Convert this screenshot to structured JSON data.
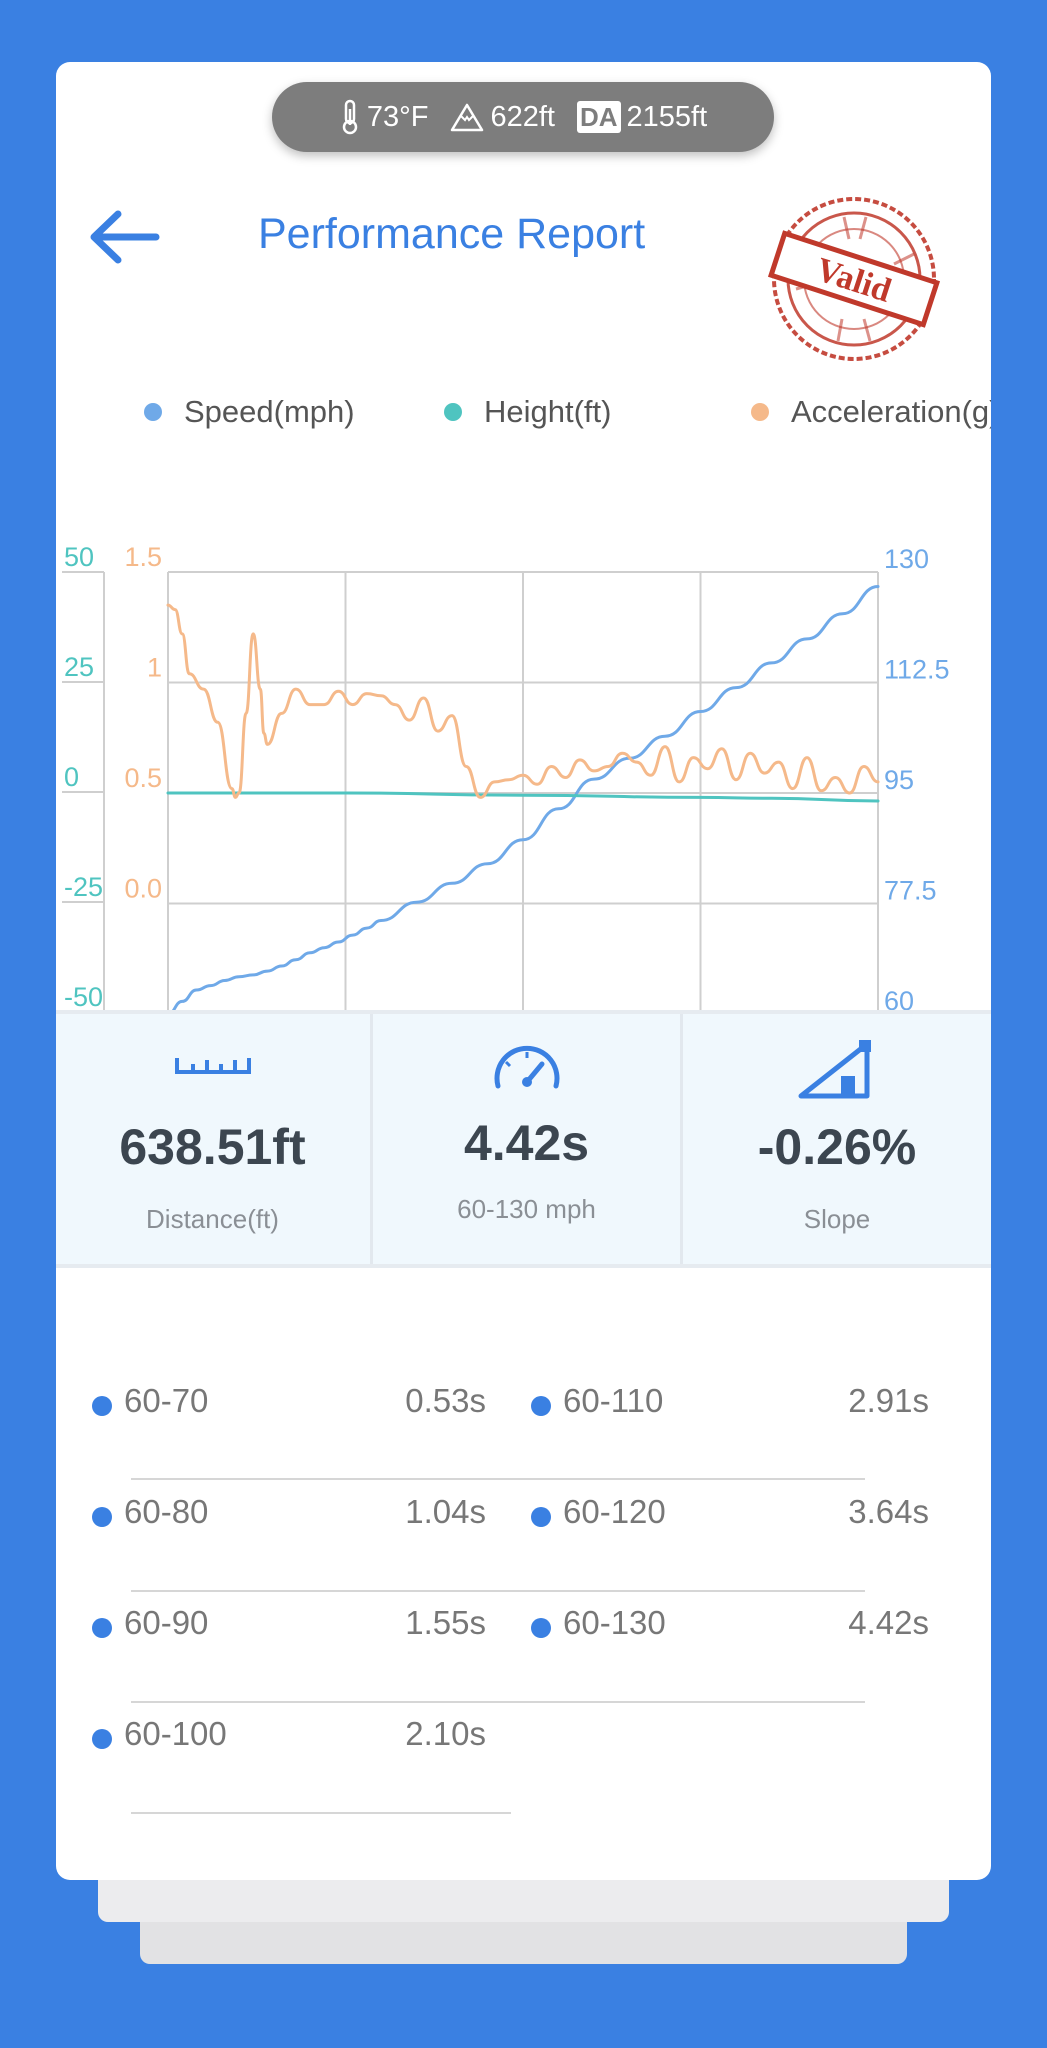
{
  "env": {
    "temperature": "73°F",
    "elevation": "622ft",
    "da_badge": "DA",
    "density_altitude": "2155ft"
  },
  "header": {
    "title": "Performance Report",
    "stamp_text": "Valid",
    "back_icon": "arrow-left-icon"
  },
  "legend": [
    {
      "label": "Speed(mph)",
      "color": "#6fa9e8"
    },
    {
      "label": "Height(ft)",
      "color": "#4fc4c0"
    },
    {
      "label": "Acceleration(g)",
      "color": "#f5b98a"
    }
  ],
  "chart_data": {
    "type": "line",
    "axes": {
      "height_left": {
        "ticks": [
          "50",
          "25",
          "0",
          "-25",
          "-50"
        ],
        "range": [
          -50,
          50
        ],
        "color": "#4fc4c0"
      },
      "accel_left": {
        "ticks": [
          "1.5",
          "1",
          "0.5",
          "0.0"
        ],
        "range": [
          -0.5,
          1.5
        ],
        "color": "#f5b98a"
      },
      "speed_right": {
        "ticks": [
          "130",
          "112.5",
          "95",
          "77.5",
          "60"
        ],
        "range": [
          60,
          130
        ],
        "color": "#6fa9e8"
      }
    },
    "x_range": [
      0,
      100
    ],
    "grid": true,
    "series": [
      {
        "name": "Speed(mph)",
        "axis": "speed_right",
        "color": "#6fa9e8",
        "x": [
          0,
          2,
          4,
          6,
          8,
          10,
          12,
          14,
          16,
          18,
          20,
          22,
          24,
          26,
          28,
          30,
          35,
          40,
          45,
          50,
          55,
          60,
          65,
          70,
          75,
          80,
          85,
          90,
          95,
          100
        ],
        "y": [
          60,
          62,
          63.8,
          64.5,
          65.3,
          65.9,
          66.2,
          66.8,
          67.6,
          68.6,
          69.7,
          70.5,
          71.4,
          72.5,
          73.6,
          74.8,
          77.7,
          80.7,
          83.8,
          87.6,
          92.5,
          97.2,
          100.5,
          104,
          107.9,
          111.7,
          115.6,
          119.4,
          123.4,
          127.7
        ]
      },
      {
        "name": "Height(ft)",
        "axis": "height_left",
        "color": "#4fc4c0",
        "x": [
          0,
          25,
          50,
          75,
          85,
          100
        ],
        "y": [
          0,
          0,
          -0.5,
          -1,
          -1.2,
          -1.8
        ]
      },
      {
        "name": "Acceleration(g)",
        "axis": "accel_left",
        "color": "#f5b98a",
        "x": [
          0,
          1,
          2,
          3,
          5,
          7,
          9,
          9.5,
          10,
          11,
          12,
          13,
          13.5,
          14,
          16,
          18,
          20,
          22,
          24,
          26,
          28,
          30,
          32,
          34,
          36,
          38,
          40,
          42,
          44,
          46,
          48,
          50,
          52,
          54,
          56,
          58,
          60,
          62,
          64,
          66,
          68,
          70,
          72,
          74,
          76,
          78,
          80,
          82,
          84,
          86,
          88,
          90,
          92,
          94,
          96,
          98,
          100
        ],
        "y": [
          1.35,
          1.33,
          1.22,
          1.04,
          0.97,
          0.82,
          0.52,
          0.48,
          0.5,
          0.86,
          1.22,
          0.97,
          0.77,
          0.72,
          0.86,
          0.97,
          0.9,
          0.9,
          0.96,
          0.9,
          0.95,
          0.94,
          0.9,
          0.83,
          0.93,
          0.78,
          0.85,
          0.62,
          0.48,
          0.55,
          0.56,
          0.58,
          0.54,
          0.62,
          0.57,
          0.65,
          0.6,
          0.62,
          0.68,
          0.64,
          0.58,
          0.71,
          0.55,
          0.66,
          0.61,
          0.7,
          0.56,
          0.68,
          0.59,
          0.64,
          0.52,
          0.66,
          0.51,
          0.57,
          0.5,
          0.62,
          0.55
        ]
      }
    ]
  },
  "stats": [
    {
      "icon": "ruler-icon",
      "value": "638.51ft",
      "label": "Distance(ft)"
    },
    {
      "icon": "speedometer-icon",
      "value": "4.42s",
      "label": "60-130 mph"
    },
    {
      "icon": "slope-icon",
      "value": "-0.26%",
      "label": "Slope"
    }
  ],
  "splits": [
    {
      "range": "60-70",
      "time": "0.53s"
    },
    {
      "range": "60-110",
      "time": "2.91s"
    },
    {
      "range": "60-80",
      "time": "1.04s"
    },
    {
      "range": "60-120",
      "time": "3.64s"
    },
    {
      "range": "60-90",
      "time": "1.55s"
    },
    {
      "range": "60-130",
      "time": "4.42s"
    },
    {
      "range": "60-100",
      "time": "2.10s"
    }
  ]
}
